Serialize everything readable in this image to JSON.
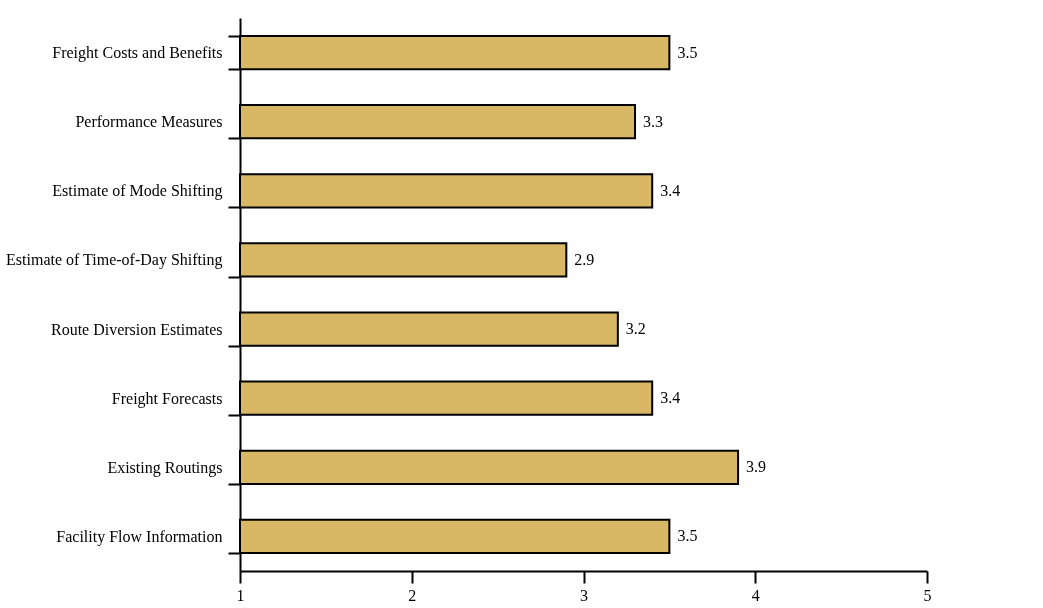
{
  "chart_data": {
    "type": "bar",
    "orientation": "horizontal",
    "categories": [
      "Freight Costs and Benefits",
      "Performance Measures",
      "Estimate of Mode Shifting",
      "Estimate of Time-of-Day Shifting",
      "Route Diversion Estimates",
      "Freight Forecasts",
      "Existing Routings",
      "Facility Flow Information"
    ],
    "values": [
      3.5,
      3.3,
      3.4,
      2.9,
      3.2,
      3.4,
      3.9,
      3.5
    ],
    "color": "#d9b865",
    "xlim": [
      1,
      5
    ],
    "xticks": [
      1,
      2,
      3,
      4,
      5
    ],
    "data_labels": true,
    "grid": false
  }
}
